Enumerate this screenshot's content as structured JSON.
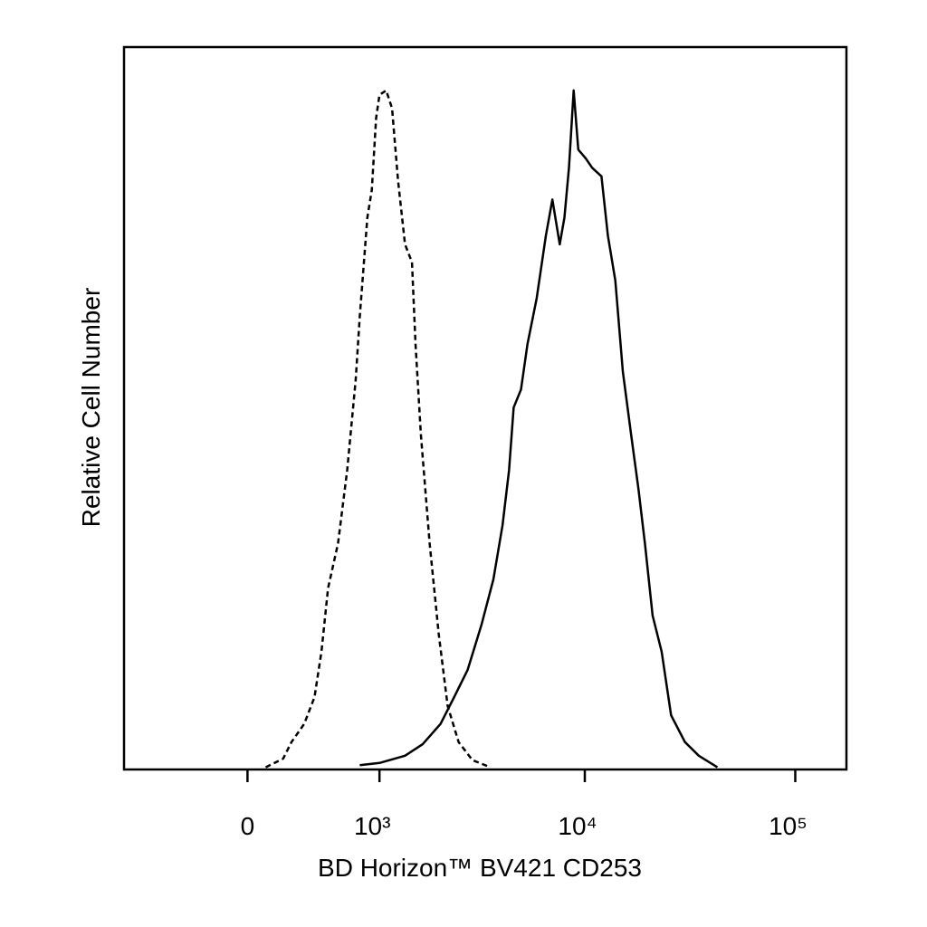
{
  "chart_data": {
    "type": "line",
    "x_label": "BD Horizon™ BV421 CD253",
    "y_label": "Relative Cell Number",
    "xscale": "biexponential",
    "xlim": [
      -900,
      175000
    ],
    "ylim": [
      0,
      100
    ],
    "xticks": [
      0,
      {
        "value": 1000,
        "label": "10³"
      },
      {
        "value": 10000,
        "label": "10⁴"
      },
      {
        "value": 100000,
        "label": "10⁵"
      }
    ],
    "series": [
      {
        "color": "#000000",
        "line_style": "dashed",
        "x": [
          100,
          200,
          250,
          330,
          400,
          450,
          500,
          580,
          660,
          740,
          780,
          860,
          910,
          960,
          1000,
          1085,
          1164,
          1250,
          1356,
          1470,
          1531,
          1627,
          1800,
          1993,
          2205,
          2491,
          2904,
          3549
        ],
        "values": [
          0.3,
          1.5,
          3.8,
          6.3,
          10,
          16.3,
          25.1,
          31.3,
          41.4,
          53.9,
          62.7,
          76.4,
          80.2,
          90.2,
          93.4,
          94,
          91.5,
          81.5,
          72.7,
          70.2,
          58.9,
          46.4,
          31.3,
          18.8,
          8.8,
          3.8,
          1.3,
          0.3
        ]
      },
      {
        "color": "#000000",
        "line_style": "solid",
        "x": [
          780,
          1000,
          1356,
          1661,
          2034,
          2368,
          2757,
          3211,
          3664,
          4054,
          4354,
          4580,
          4966,
          5333,
          5900,
          6530,
          7010,
          7600,
          8000,
          8410,
          8850,
          9310,
          10100,
          10840,
          12000,
          12880,
          13960,
          15160,
          16600,
          18000,
          19300,
          21000,
          23200,
          25700,
          29900,
          34800,
          42700
        ],
        "values": [
          0.6,
          0.9,
          1.9,
          3.5,
          6.3,
          10,
          13.8,
          20,
          26.3,
          33.8,
          41.4,
          50.1,
          52.6,
          58.9,
          65.2,
          73.9,
          78.9,
          72.7,
          76.4,
          83.3,
          94,
          85.8,
          84.6,
          83.3,
          82.1,
          73.9,
          67.7,
          55.1,
          46.4,
          38.8,
          31.3,
          21.3,
          16.3,
          7.5,
          3.8,
          1.9,
          0.3
        ]
      }
    ]
  }
}
